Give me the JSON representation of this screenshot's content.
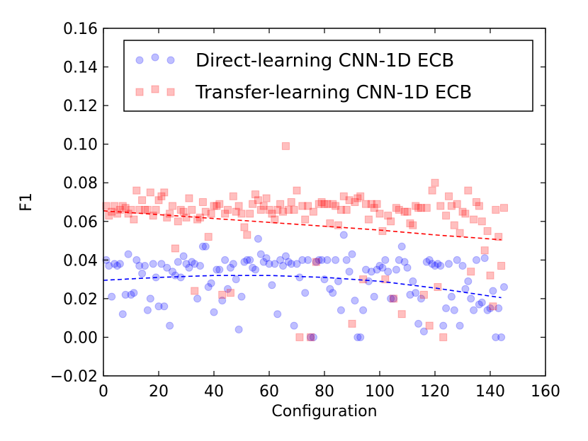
{
  "chart_data": {
    "type": "scatter",
    "title": "",
    "xlabel": "Configuration",
    "ylabel": "F1",
    "xlim": [
      0,
      160
    ],
    "ylim": [
      -0.02,
      0.16
    ],
    "xticks": [
      "0",
      "20",
      "40",
      "60",
      "80",
      "100",
      "120",
      "140",
      "160"
    ],
    "yticks": [
      "−0.02",
      "0.00",
      "0.02",
      "0.04",
      "0.06",
      "0.08",
      "0.10",
      "0.12",
      "0.14",
      "0.16"
    ],
    "grid": false,
    "legend_position": "top-right",
    "series": [
      {
        "name": "Direct-learning CNN-1D ECB",
        "marker": "circle",
        "color": "#0000ff",
        "trend_color": "#0000ff",
        "trend": [
          [
            0,
            0.0295
          ],
          [
            20,
            0.031
          ],
          [
            40,
            0.032
          ],
          [
            60,
            0.032
          ],
          [
            80,
            0.031
          ],
          [
            100,
            0.029
          ],
          [
            120,
            0.0255
          ],
          [
            144,
            0.0205
          ]
        ],
        "points": [
          [
            1,
            0.04
          ],
          [
            2,
            0.037
          ],
          [
            3,
            0.021
          ],
          [
            4,
            0.038
          ],
          [
            5,
            0.037
          ],
          [
            6,
            0.038
          ],
          [
            7,
            0.012
          ],
          [
            8,
            0.022
          ],
          [
            9,
            0.043
          ],
          [
            10,
            0.022
          ],
          [
            11,
            0.023
          ],
          [
            12,
            0.04
          ],
          [
            13,
            0.037
          ],
          [
            14,
            0.033
          ],
          [
            15,
            0.037
          ],
          [
            16,
            0.014
          ],
          [
            17,
            0.02
          ],
          [
            18,
            0.038
          ],
          [
            19,
            0.031
          ],
          [
            20,
            0.016
          ],
          [
            21,
            0.038
          ],
          [
            22,
            0.016
          ],
          [
            23,
            0.036
          ],
          [
            24,
            0.006
          ],
          [
            25,
            0.034
          ],
          [
            26,
            0.032
          ],
          [
            27,
            0.039
          ],
          [
            28,
            0.031
          ],
          [
            29,
            0.042
          ],
          [
            30,
            0.038
          ],
          [
            31,
            0.036
          ],
          [
            32,
            0.039
          ],
          [
            33,
            0.038
          ],
          [
            34,
            0.02
          ],
          [
            35,
            0.037
          ],
          [
            36,
            0.047
          ],
          [
            37,
            0.047
          ],
          [
            38,
            0.026
          ],
          [
            39,
            0.028
          ],
          [
            40,
            0.013
          ],
          [
            41,
            0.035
          ],
          [
            42,
            0.035
          ],
          [
            43,
            0.019
          ],
          [
            44,
            0.04
          ],
          [
            45,
            0.025
          ],
          [
            46,
            0.036
          ],
          [
            47,
            0.038
          ],
          [
            48,
            0.03
          ],
          [
            49,
            0.004
          ],
          [
            50,
            0.021
          ],
          [
            51,
            0.039
          ],
          [
            52,
            0.04
          ],
          [
            53,
            0.04
          ],
          [
            54,
            0.036
          ],
          [
            55,
            0.035
          ],
          [
            56,
            0.051
          ],
          [
            57,
            0.043
          ],
          [
            58,
            0.039
          ],
          [
            59,
            0.041
          ],
          [
            60,
            0.038
          ],
          [
            61,
            0.027
          ],
          [
            62,
            0.038
          ],
          [
            63,
            0.012
          ],
          [
            64,
            0.04
          ],
          [
            65,
            0.037
          ],
          [
            66,
            0.042
          ],
          [
            67,
            0.039
          ],
          [
            68,
            0.038
          ],
          [
            69,
            0.006
          ],
          [
            70,
            0.038
          ],
          [
            71,
            0.031
          ],
          [
            72,
            0.04
          ],
          [
            73,
            0.023
          ],
          [
            74,
            0.04
          ],
          [
            75,
            0.0
          ],
          [
            76,
            0.0
          ],
          [
            77,
            0.039
          ],
          [
            78,
            0.04
          ],
          [
            79,
            0.04
          ],
          [
            80,
            0.03
          ],
          [
            81,
            0.04
          ],
          [
            82,
            0.025
          ],
          [
            83,
            0.023
          ],
          [
            84,
            0.04
          ],
          [
            85,
            0.029
          ],
          [
            86,
            0.014
          ],
          [
            87,
            0.053
          ],
          [
            88,
            0.04
          ],
          [
            89,
            0.034
          ],
          [
            90,
            0.043
          ],
          [
            91,
            0.019
          ],
          [
            92,
            0.0
          ],
          [
            93,
            0.0
          ],
          [
            94,
            0.014
          ],
          [
            95,
            0.035
          ],
          [
            96,
            0.029
          ],
          [
            97,
            0.034
          ],
          [
            98,
            0.021
          ],
          [
            99,
            0.035
          ],
          [
            100,
            0.037
          ],
          [
            101,
            0.036
          ],
          [
            102,
            0.04
          ],
          [
            103,
            0.034
          ],
          [
            104,
            0.02
          ],
          [
            105,
            0.02
          ],
          [
            106,
            0.035
          ],
          [
            107,
            0.04
          ],
          [
            108,
            0.047
          ],
          [
            109,
            0.039
          ],
          [
            110,
            0.036
          ],
          [
            111,
            0.022
          ],
          [
            112,
            0.029
          ],
          [
            113,
            0.023
          ],
          [
            114,
            0.007
          ],
          [
            115,
            0.02
          ],
          [
            116,
            0.003
          ],
          [
            117,
            0.039
          ],
          [
            118,
            0.04
          ],
          [
            119,
            0.038
          ],
          [
            120,
            0.037
          ],
          [
            121,
            0.038
          ],
          [
            122,
            0.037
          ],
          [
            123,
            0.006
          ],
          [
            124,
            0.015
          ],
          [
            125,
            0.038
          ],
          [
            126,
            0.021
          ],
          [
            127,
            0.014
          ],
          [
            128,
            0.04
          ],
          [
            129,
            0.006
          ],
          [
            130,
            0.037
          ],
          [
            131,
            0.025
          ],
          [
            132,
            0.029
          ],
          [
            133,
            0.02
          ],
          [
            134,
            0.014
          ],
          [
            135,
            0.04
          ],
          [
            136,
            0.017
          ],
          [
            137,
            0.018
          ],
          [
            138,
            0.041
          ],
          [
            139,
            0.014
          ],
          [
            140,
            0.015
          ],
          [
            141,
            0.024
          ],
          [
            142,
            0.0
          ],
          [
            143,
            0.015
          ],
          [
            144,
            0.0
          ],
          [
            145,
            0.026
          ]
        ]
      },
      {
        "name": "Transfer-learning CNN-1D ECB",
        "marker": "square",
        "color": "#ff0000",
        "trend_color": "#ff0000",
        "trend": [
          [
            0,
            0.0655
          ],
          [
            20,
            0.0635
          ],
          [
            40,
            0.0615
          ],
          [
            60,
            0.0595
          ],
          [
            80,
            0.0575
          ],
          [
            100,
            0.0555
          ],
          [
            120,
            0.053
          ],
          [
            144,
            0.0505
          ]
        ],
        "points": [
          [
            1,
            0.068
          ],
          [
            2,
            0.063
          ],
          [
            3,
            0.065
          ],
          [
            4,
            0.068
          ],
          [
            5,
            0.064
          ],
          [
            6,
            0.066
          ],
          [
            7,
            0.068
          ],
          [
            8,
            0.067
          ],
          [
            9,
            0.064
          ],
          [
            10,
            0.066
          ],
          [
            11,
            0.061
          ],
          [
            12,
            0.076
          ],
          [
            13,
            0.066
          ],
          [
            14,
            0.071
          ],
          [
            15,
            0.066
          ],
          [
            16,
            0.066
          ],
          [
            17,
            0.075
          ],
          [
            18,
            0.063
          ],
          [
            19,
            0.066
          ],
          [
            20,
            0.071
          ],
          [
            21,
            0.073
          ],
          [
            22,
            0.075
          ],
          [
            23,
            0.062
          ],
          [
            24,
            0.064
          ],
          [
            25,
            0.068
          ],
          [
            26,
            0.046
          ],
          [
            27,
            0.06
          ],
          [
            28,
            0.066
          ],
          [
            29,
            0.065
          ],
          [
            30,
            0.062
          ],
          [
            31,
            0.072
          ],
          [
            32,
            0.066
          ],
          [
            33,
            0.024
          ],
          [
            34,
            0.061
          ],
          [
            35,
            0.062
          ],
          [
            36,
            0.07
          ],
          [
            37,
            0.065
          ],
          [
            38,
            0.052
          ],
          [
            39,
            0.064
          ],
          [
            40,
            0.068
          ],
          [
            41,
            0.068
          ],
          [
            42,
            0.069
          ],
          [
            43,
            0.022
          ],
          [
            44,
            0.064
          ],
          [
            45,
            0.066
          ],
          [
            46,
            0.023
          ],
          [
            47,
            0.073
          ],
          [
            48,
            0.065
          ],
          [
            49,
            0.068
          ],
          [
            50,
            0.064
          ],
          [
            51,
            0.057
          ],
          [
            52,
            0.053
          ],
          [
            53,
            0.064
          ],
          [
            54,
            0.069
          ],
          [
            55,
            0.074
          ],
          [
            56,
            0.071
          ],
          [
            57,
            0.066
          ],
          [
            58,
            0.068
          ],
          [
            59,
            0.072
          ],
          [
            60,
            0.066
          ],
          [
            61,
            0.064
          ],
          [
            62,
            0.061
          ],
          [
            63,
            0.066
          ],
          [
            64,
            0.069
          ],
          [
            65,
            0.065
          ],
          [
            66,
            0.099
          ],
          [
            67,
            0.066
          ],
          [
            68,
            0.07
          ],
          [
            69,
            0.066
          ],
          [
            70,
            0.076
          ],
          [
            71,
            0.0
          ],
          [
            72,
            0.068
          ],
          [
            73,
            0.061
          ],
          [
            74,
            0.068
          ],
          [
            75,
            0.0
          ],
          [
            76,
            0.065
          ],
          [
            77,
            0.039
          ],
          [
            78,
            0.069
          ],
          [
            79,
            0.07
          ],
          [
            80,
            0.069
          ],
          [
            81,
            0.069
          ],
          [
            82,
            0.059
          ],
          [
            83,
            0.069
          ],
          [
            84,
            0.068
          ],
          [
            85,
            0.058
          ],
          [
            86,
            0.066
          ],
          [
            87,
            0.073
          ],
          [
            88,
            0.066
          ],
          [
            89,
            0.071
          ],
          [
            90,
            0.007
          ],
          [
            91,
            0.07
          ],
          [
            92,
            0.072
          ],
          [
            93,
            0.073
          ],
          [
            94,
            0.03
          ],
          [
            95,
            0.069
          ],
          [
            96,
            0.061
          ],
          [
            97,
            0.069
          ],
          [
            98,
            0.067
          ],
          [
            99,
            0.069
          ],
          [
            100,
            0.064
          ],
          [
            101,
            0.055
          ],
          [
            102,
            0.03
          ],
          [
            103,
            0.063
          ],
          [
            104,
            0.06
          ],
          [
            105,
            0.02
          ],
          [
            106,
            0.067
          ],
          [
            107,
            0.066
          ],
          [
            108,
            0.012
          ],
          [
            109,
            0.065
          ],
          [
            110,
            0.065
          ],
          [
            111,
            0.059
          ],
          [
            112,
            0.058
          ],
          [
            113,
            0.068
          ],
          [
            114,
            0.067
          ],
          [
            115,
            0.067
          ],
          [
            116,
            0.022
          ],
          [
            117,
            0.067
          ],
          [
            118,
            0.006
          ],
          [
            119,
            0.076
          ],
          [
            120,
            0.08
          ],
          [
            121,
            0.026
          ],
          [
            122,
            0.068
          ],
          [
            123,
            0.0
          ],
          [
            124,
            0.063
          ],
          [
            125,
            0.073
          ],
          [
            126,
            0.068
          ],
          [
            127,
            0.058
          ],
          [
            128,
            0.069
          ],
          [
            129,
            0.054
          ],
          [
            130,
            0.065
          ],
          [
            131,
            0.064
          ],
          [
            132,
            0.076
          ],
          [
            133,
            0.034
          ],
          [
            134,
            0.061
          ],
          [
            135,
            0.07
          ],
          [
            136,
            0.068
          ],
          [
            137,
            0.06
          ],
          [
            138,
            0.045
          ],
          [
            139,
            0.055
          ],
          [
            140,
            0.032
          ],
          [
            141,
            0.016
          ],
          [
            142,
            0.066
          ],
          [
            143,
            0.052
          ],
          [
            144,
            0.037
          ],
          [
            145,
            0.067
          ]
        ]
      }
    ]
  }
}
